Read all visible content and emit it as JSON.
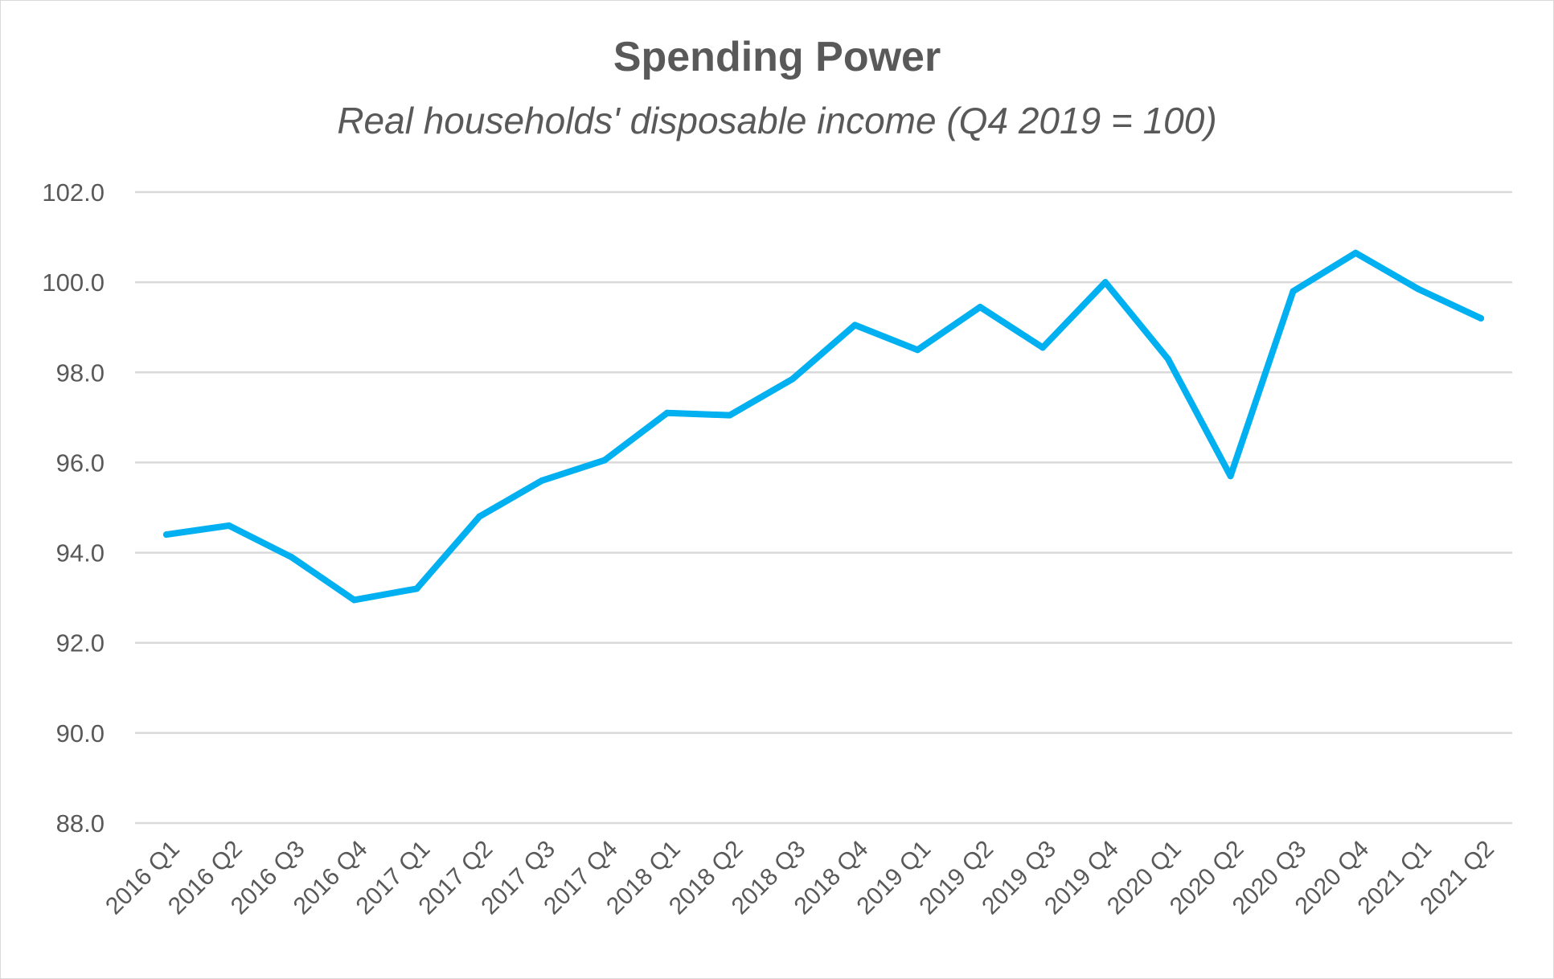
{
  "chart_data": {
    "type": "line",
    "title": "Spending Power",
    "subtitle": "Real households' disposable income (Q4 2019 = 100)",
    "xlabel": "",
    "ylabel": "",
    "ylim": [
      88.0,
      102.0
    ],
    "yticks": [
      "88.0",
      "90.0",
      "92.0",
      "94.0",
      "96.0",
      "98.0",
      "100.0",
      "102.0"
    ],
    "grid": true,
    "legend": "none",
    "line_color": "#00b0f0",
    "categories": [
      "2016 Q1",
      "2016 Q2",
      "2016 Q3",
      "2016 Q4",
      "2017 Q1",
      "2017 Q2",
      "2017 Q3",
      "2017 Q4",
      "2018 Q1",
      "2018 Q2",
      "2018 Q3",
      "2018 Q4",
      "2019 Q1",
      "2019 Q2",
      "2019 Q3",
      "2019 Q4",
      "2020 Q1",
      "2020 Q2",
      "2020 Q3",
      "2020 Q4",
      "2021 Q1",
      "2021 Q2"
    ],
    "series": [
      {
        "name": "Real households' disposable income",
        "values": [
          94.4,
          94.6,
          93.9,
          92.95,
          93.2,
          94.8,
          95.6,
          96.05,
          97.1,
          97.05,
          97.85,
          99.05,
          98.5,
          99.45,
          98.55,
          100.0,
          98.3,
          95.7,
          99.8,
          100.65,
          99.85,
          99.2
        ]
      }
    ]
  }
}
